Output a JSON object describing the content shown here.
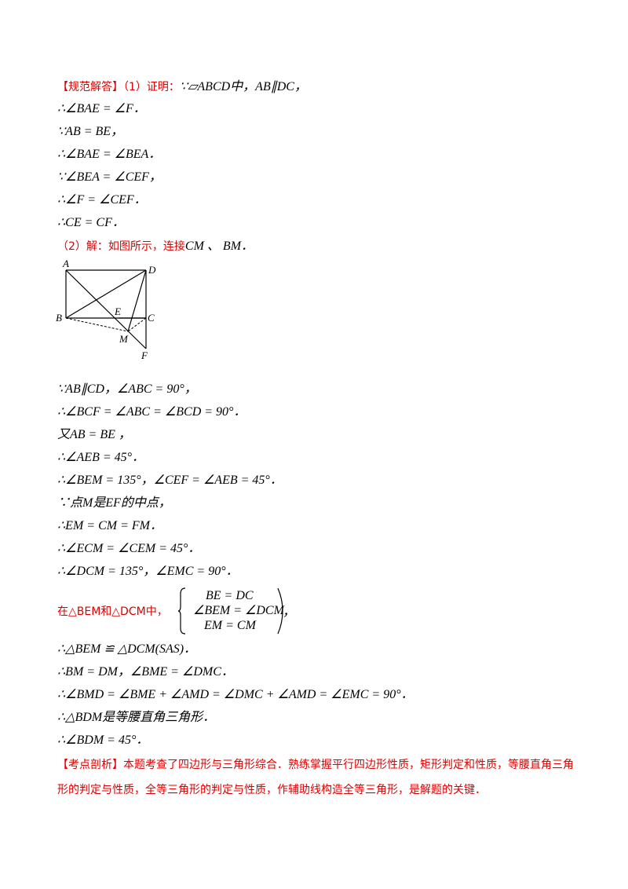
{
  "part1": {
    "header_tag": "【规范解答】",
    "header_rest": "（1）证明：",
    "header_math": "∵▱ABCD中，AB∥DC，",
    "lines": [
      "∴∠BAE = ∠F．",
      "∵AB = BE，",
      "∴∠BAE = ∠BEA．",
      "∵∠BEA = ∠CEF，",
      "∴∠F = ∠CEF．",
      "∴CE = CF．"
    ]
  },
  "part2": {
    "header": "（2）解：如图所示，连接",
    "header_math": "CM 、 BM．",
    "lines": [
      "∵AB∥CD，∠ABC = 90°，",
      "∴∠BCF = ∠ABC = ∠BCD = 90°．",
      "又AB = BE ，",
      "∴∠AEB = 45°．",
      "∴∠BEM = 135°，∠CEF = ∠AEB = 45°．",
      "∵点M是EF的中点，",
      "∴EM = CM = FM．",
      "∴∠ECM = ∠CEM = 45°．",
      "∴∠DCM = 135°，∠EMC = 90°．"
    ],
    "system_prefix": "在△BEM和△DCM中，",
    "system_rows": [
      "BE = DC",
      "∠BEM = ∠DCM",
      "EM = CM"
    ],
    "system_suffix": "，",
    "lines_after": [
      "∴△BEM ≌ △DCM(SAS)．",
      "∴BM = DM，∠BME = ∠DMC．",
      "∴∠BMD = ∠BME + ∠AMD = ∠DMC + ∠AMD = ∠EMC = 90°．",
      "∴△BDM是等腰直角三角形．",
      "∴∠BDM = 45°．"
    ]
  },
  "figure": {
    "labels": {
      "A": "A",
      "B": "B",
      "C": "C",
      "D": "D",
      "E": "E",
      "M": "M",
      "F": "F"
    }
  },
  "analysis": {
    "tag": "【考点剖析】",
    "text": "本题考查了四边形与三角形综合．熟练掌握平行四边形性质，矩形判定和性质，等腰直角三角形的判定与性质，全等三角形的判定与性质，作辅助线构造全等三角形，是解题的关键．"
  }
}
